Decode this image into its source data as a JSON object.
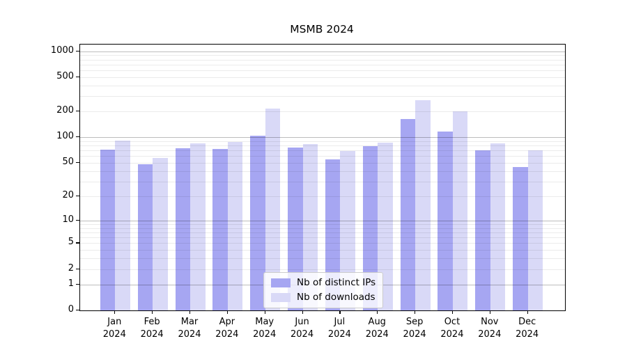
{
  "title": "MSMB 2024",
  "chart_data": {
    "type": "bar",
    "title": "MSMB 2024",
    "categories": [
      "Jan",
      "Feb",
      "Mar",
      "Apr",
      "May",
      "Jun",
      "Jul",
      "Aug",
      "Sep",
      "Oct",
      "Nov",
      "Dec"
    ],
    "x_tick_label_line2": "2024",
    "series": [
      {
        "name": "Nb of distinct IPs",
        "color": "#a6a6f2",
        "values": [
          72,
          48,
          75,
          73,
          104,
          76,
          55,
          79,
          163,
          117,
          71,
          45
        ]
      },
      {
        "name": "Nb of downloads",
        "color": "#d9d9f7",
        "values": [
          91,
          57,
          85,
          89,
          217,
          84,
          69,
          86,
          270,
          200,
          85,
          70
        ]
      }
    ],
    "y_scale": "log10(1+x)",
    "y_ticks": [
      0,
      1,
      2,
      5,
      10,
      20,
      50,
      100,
      200,
      500,
      1000
    ],
    "ylim": [
      0,
      1200
    ],
    "grid": "horizontal",
    "grid_major_values": [
      1,
      10,
      100,
      1000
    ],
    "grid_minor_values": [
      2,
      3,
      4,
      5,
      6,
      7,
      8,
      9,
      20,
      30,
      40,
      50,
      60,
      70,
      80,
      90,
      200,
      300,
      400,
      500,
      600,
      700,
      800,
      900
    ],
    "legend_position": "lower-center-inside",
    "colors": {
      "grid_major": "rgba(0,0,0,0.26)",
      "grid_minor": "rgba(0,0,0,0.08)",
      "axis": "#000000",
      "background": "#ffffff",
      "text": "#000000"
    }
  }
}
